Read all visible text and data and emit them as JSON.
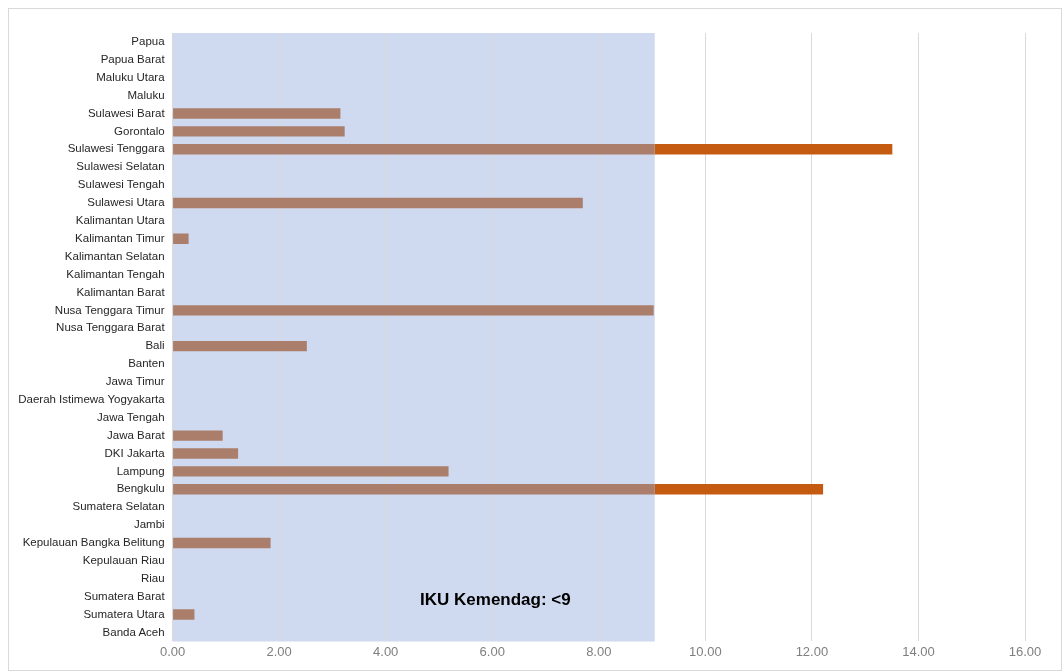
{
  "chart_data": {
    "type": "bar",
    "orientation": "horizontal",
    "stacked": true,
    "categories": [
      "Papua",
      "Papua Barat",
      "Maluku Utara",
      "Maluku",
      "Sulawesi Barat",
      "Gorontalo",
      "Sulawesi Tenggara",
      "Sulawesi Selatan",
      "Sulawesi Tengah",
      "Sulawesi Utara",
      "Kalimantan Utara",
      "Kalimantan Timur",
      "Kalimantan Selatan",
      "Kalimantan Tengah",
      "Kalimantan Barat",
      "Nusa Tenggara Timur",
      "Nusa Tenggara Barat",
      "Bali",
      "Banten",
      "Jawa Timur",
      "Daerah Istimewa Yogyakarta",
      "Jawa Tengah",
      "Jawa Barat",
      "DKI Jakarta",
      "Lampung",
      "Bengkulu",
      "Sumatera Selatan",
      "Jambi",
      "Kepulauan Bangka Belitung",
      "Kepulauan Riau",
      "Riau",
      "Sumatera Barat",
      "Sumatera Utara",
      "Banda Aceh"
    ],
    "series": [
      {
        "color": "#ab7e6b",
        "values": [
          null,
          null,
          null,
          null,
          3.15,
          3.23,
          9.05,
          null,
          null,
          7.7,
          null,
          0.3,
          null,
          null,
          null,
          9.03,
          null,
          2.52,
          null,
          null,
          null,
          null,
          0.94,
          1.23,
          5.18,
          9.05,
          null,
          null,
          1.84,
          null,
          null,
          null,
          0.41,
          null
        ]
      },
      {
        "color": "#c55a11",
        "values": [
          null,
          null,
          null,
          null,
          null,
          null,
          4.46,
          null,
          null,
          null,
          null,
          null,
          null,
          null,
          null,
          null,
          null,
          null,
          null,
          null,
          null,
          null,
          null,
          null,
          null,
          3.16,
          null,
          null,
          null,
          null,
          null,
          null,
          null,
          null
        ]
      }
    ],
    "xlim": [
      0,
      16
    ],
    "xticks": [
      {
        "value": 0,
        "label": "0.00"
      },
      {
        "value": 2,
        "label": "2.00"
      },
      {
        "value": 4,
        "label": "4.00"
      },
      {
        "value": 6,
        "label": "6.00"
      },
      {
        "value": 8,
        "label": "8.00"
      },
      {
        "value": 10,
        "label": "10.00"
      },
      {
        "value": 12,
        "label": "12.00"
      },
      {
        "value": 14,
        "label": "14.00"
      },
      {
        "value": 16,
        "label": "16.00"
      }
    ],
    "grid": "x",
    "bands": [
      {
        "axis": "x",
        "from": 0,
        "to": 9.05,
        "label": "IKU Kemendag: <9",
        "color": "#cfdaf0"
      }
    ]
  }
}
